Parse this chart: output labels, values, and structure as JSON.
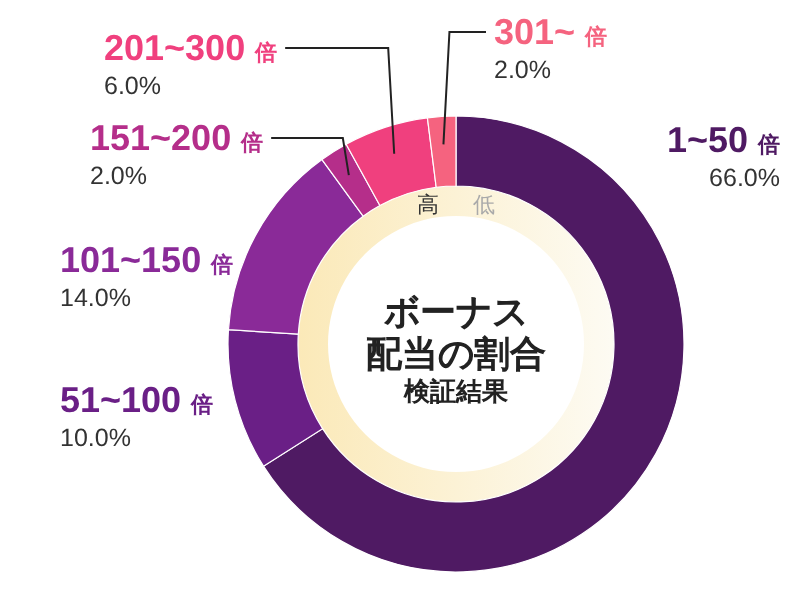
{
  "chart_data": {
    "type": "donut",
    "title": "ボーナス",
    "subtitle": "配当の割合",
    "categories": [
      "1~50 倍",
      "51~100 倍",
      "101~150 倍",
      "151~200 倍",
      "201~300 倍",
      "301~ 倍"
    ],
    "values": [
      66.0,
      10.0,
      14.0,
      2.0,
      6.0,
      2.0
    ],
    "value_labels": [
      "66.0%",
      "10.0%",
      "14.0%",
      "2.0%",
      "6.0%",
      "2.0%"
    ],
    "colors": [
      "#4f1a63",
      "#6a1f86",
      "#8a2a98",
      "#b52e8a",
      "#f0407e",
      "#f5637f"
    ],
    "annotations": [
      "高",
      "低",
      "検証結果"
    ]
  }
}
